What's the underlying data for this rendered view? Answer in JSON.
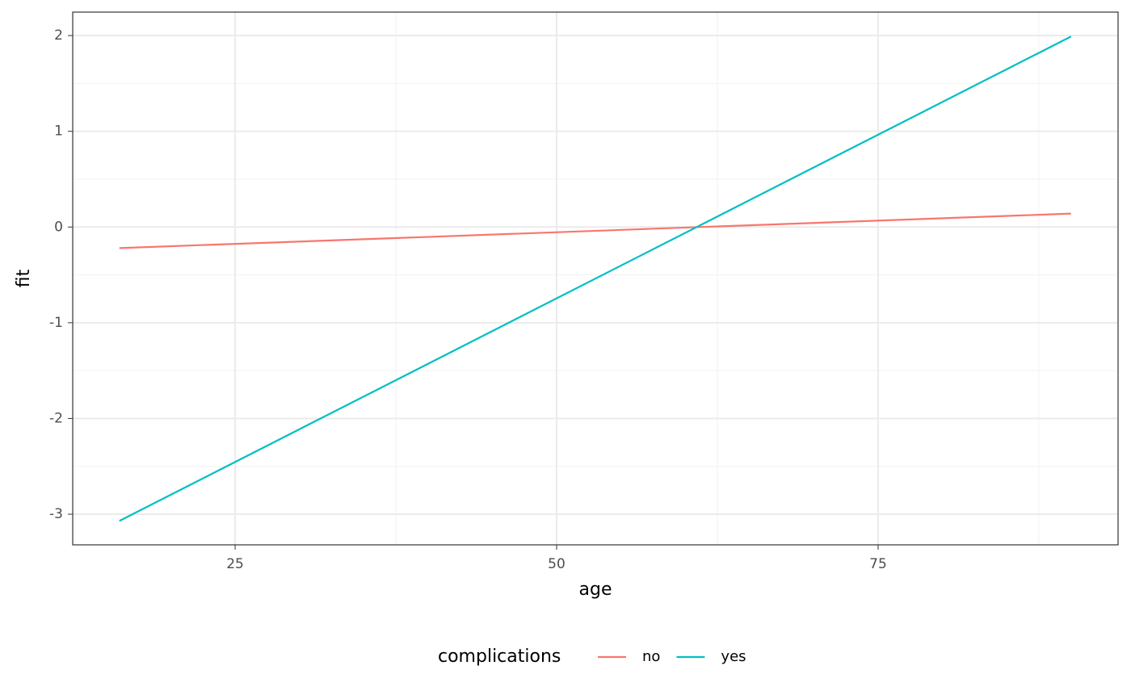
{
  "chart_data": {
    "type": "line",
    "x_label": "age",
    "y_label": "fit",
    "x": [
      16,
      90
    ],
    "series": [
      {
        "name": "no",
        "color": "#F8766D",
        "values": [
          -0.22,
          0.14
        ]
      },
      {
        "name": "yes",
        "color": "#00BFC4",
        "values": [
          -3.07,
          1.99
        ]
      }
    ],
    "xlim": [
      12.37,
      93.66
    ],
    "xticks": [
      25,
      50,
      75
    ],
    "ylim": [
      -3.32,
      2.245
    ],
    "yticks": [
      -3,
      -2,
      -1,
      0,
      1,
      2
    ],
    "grid": true,
    "legend_title": "complications",
    "legend_position": "bottom"
  }
}
